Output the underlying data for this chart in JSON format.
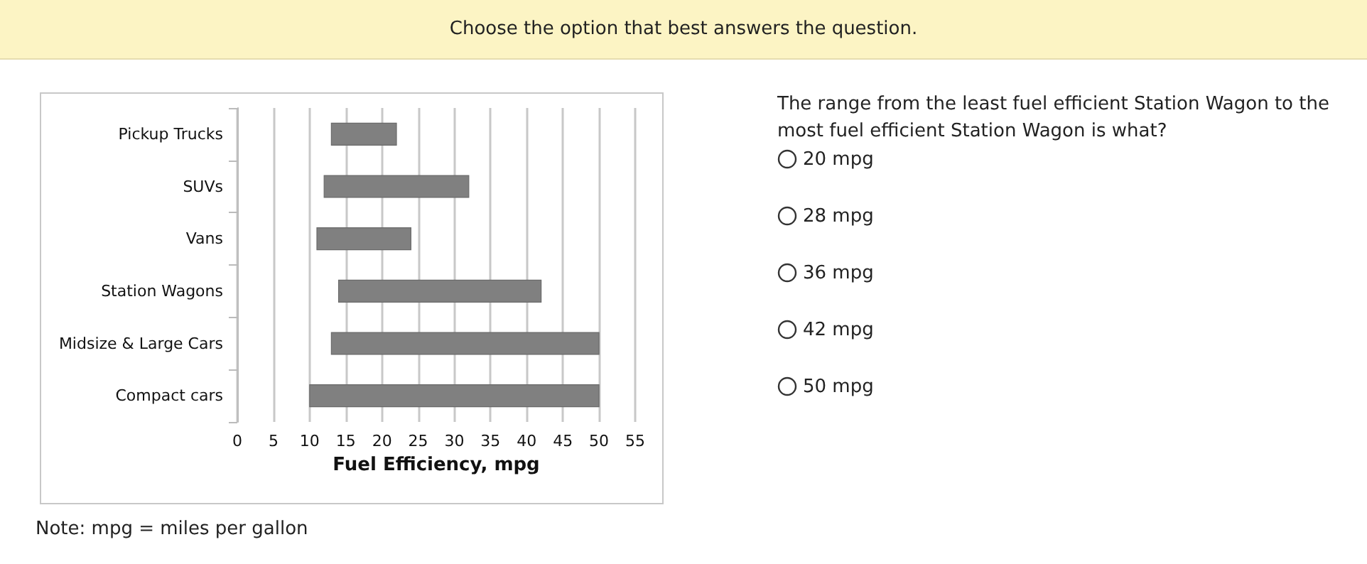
{
  "chart_data": {
    "type": "bar",
    "orientation": "horizontal",
    "title": "Choose the option that best answers the question.",
    "xlabel": "Fuel Efficiency, mpg",
    "categories": [
      "Pickup Trucks",
      "SUVs",
      "Vans",
      "Station Wagons",
      "Midsize & Large Cars",
      "Compact cars"
    ],
    "base": [
      13,
      12,
      11,
      14,
      13,
      10
    ],
    "values": [
      9,
      20,
      13,
      28,
      37,
      40
    ],
    "color": "#808080",
    "xlim": [
      0,
      55
    ],
    "xticks": [
      0,
      5,
      10,
      15,
      20,
      25,
      30,
      35,
      40,
      45,
      50,
      55
    ],
    "grid": "x",
    "annotations": [
      "The range from the least fuel efficient Station Wagon to the most fuel efficient Station Wagon is what?",
      "20 mpg",
      "28 mpg",
      "36 mpg",
      "42 mpg",
      "50 mpg",
      "Note: mpg = miles per gallon"
    ]
  }
}
